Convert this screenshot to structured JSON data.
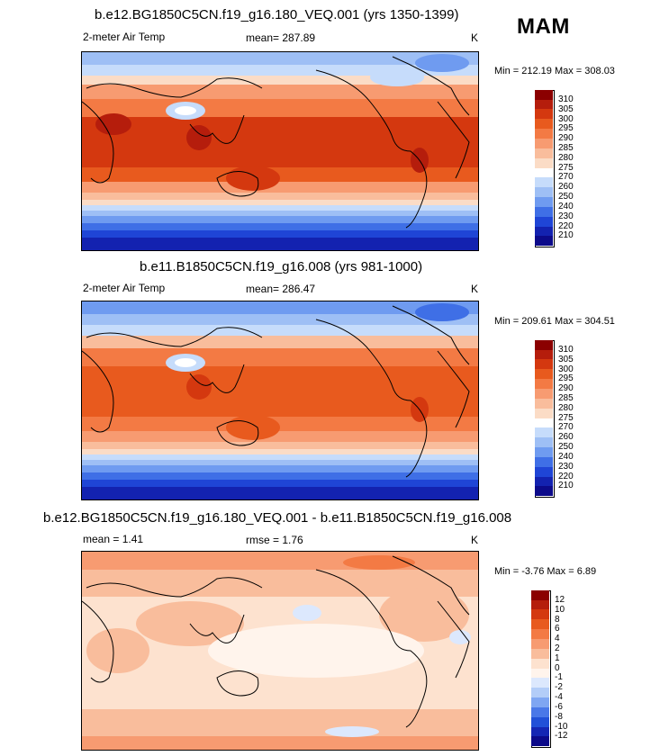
{
  "season": "MAM",
  "colorbars": {
    "abs": {
      "labels": [
        "310",
        "305",
        "300",
        "295",
        "290",
        "285",
        "280",
        "275",
        "270",
        "260",
        "250",
        "240",
        "230",
        "220",
        "210"
      ],
      "colors": [
        "#8b0000",
        "#b51d0c",
        "#d4380f",
        "#e85a1e",
        "#f37a44",
        "#f79b71",
        "#f9bd9c",
        "#fbdcc6",
        "#ffffff",
        "#c6dcfb",
        "#9ebff5",
        "#6f9bf0",
        "#3f6fe6",
        "#1f45d6",
        "#1322b0",
        "#0c0a8a"
      ]
    },
    "diff": {
      "labels": [
        "12",
        "10",
        "8",
        "6",
        "4",
        "2",
        "1",
        "0",
        "-1",
        "-2",
        "-4",
        "-6",
        "-8",
        "-10",
        "-12"
      ],
      "colors": [
        "#8b0000",
        "#b51d0c",
        "#d4380f",
        "#e85a1e",
        "#f37a44",
        "#f79b71",
        "#f9bd9c",
        "#fde2cf",
        "#fff4ec",
        "#dce8fd",
        "#b3cdf8",
        "#7fa6f2",
        "#4a78e8",
        "#2150d8",
        "#1426b4",
        "#0c0a8a"
      ]
    }
  },
  "panels": [
    {
      "title": "b.e12.BG1850C5CN.f19_g16.180_VEQ.001 (yrs 1350-1399)",
      "left_label": "2-meter Air Temp",
      "mid_label": "mean= 287.89",
      "units": "K",
      "minmax": "Min = 212.19 Max = 308.03"
    },
    {
      "title": "b.e11.B1850C5CN.f19_g16.008 (yrs 981-1000)",
      "left_label": "2-meter Air Temp",
      "mid_label": "mean= 286.47",
      "units": "K",
      "minmax": "Min = 209.61 Max = 304.51"
    },
    {
      "title": "b.e12.BG1850C5CN.f19_g16.180_VEQ.001 - b.e11.B1850C5CN.f19_g16.008",
      "left_label": "mean =   1.41",
      "mid_label": "rmse =   1.76",
      "units": "K",
      "minmax": "Min =  -3.76 Max =   6.89"
    }
  ]
}
